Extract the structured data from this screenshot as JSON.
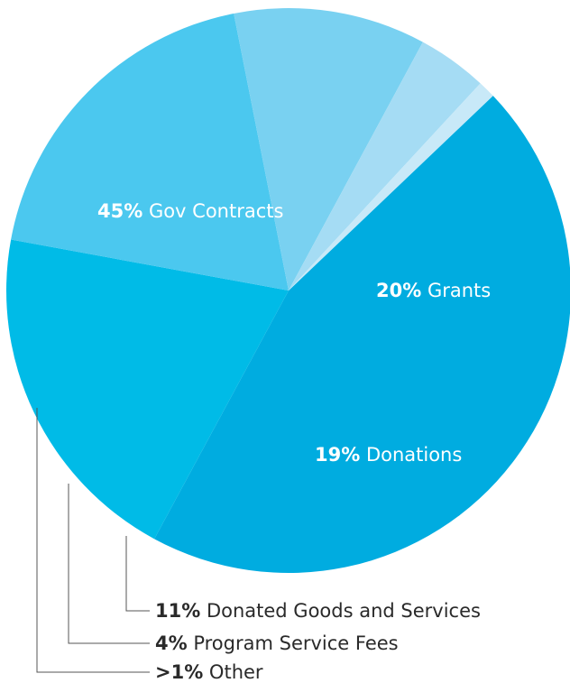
{
  "chart_data": {
    "type": "pie",
    "title": "",
    "slices": [
      {
        "pct_label": "45%",
        "name": "Gov Contracts",
        "value": 45,
        "color": "#00ace0",
        "label_position": "inside"
      },
      {
        "pct_label": "20%",
        "name": "Grants",
        "value": 20,
        "color": "#00bbe7",
        "label_position": "inside"
      },
      {
        "pct_label": "19%",
        "name": "Donations",
        "value": 19,
        "color": "#4bc8ef",
        "label_position": "inside"
      },
      {
        "pct_label": "11%",
        "name": "Donated Goods and Services",
        "value": 11,
        "color": "#79d1f1",
        "label_position": "outside"
      },
      {
        "pct_label": "4%",
        "name": "Program Service Fees",
        "value": 4,
        "color": "#a5dcf4",
        "label_position": "outside"
      },
      {
        "pct_label": ">1%",
        "name": "Other",
        "value": 1,
        "color": "#c8e9f8",
        "label_position": "outside"
      }
    ]
  }
}
